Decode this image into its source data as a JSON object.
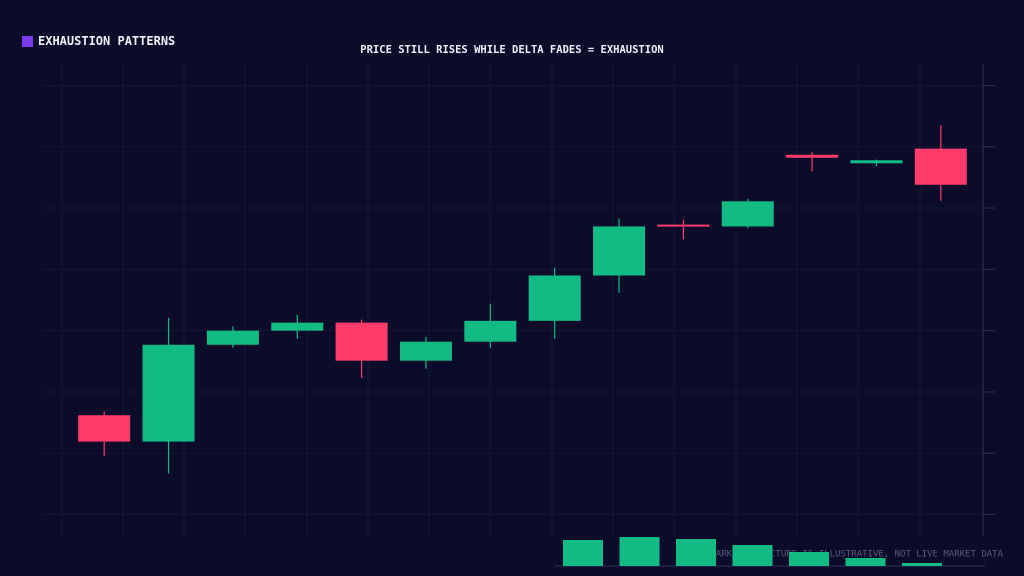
{
  "header": {
    "title": "EXHAUSTION PATTERNS"
  },
  "footer": {
    "note": "MARKET STRUCTURE IS ILLUSTRATIVE, NOT LIVE MARKET DATA"
  },
  "chart_data": [
    {
      "type": "candlestick",
      "title": "PRICE STILL RISES WHILE DELTA FADES = EXHAUSTION",
      "up_color": "#12bb83",
      "down_color": "#ff3b6b",
      "open": [
        1.62,
        1.19,
        2.77,
        3.0,
        3.13,
        2.51,
        2.82,
        3.16,
        3.9,
        4.73,
        4.7,
        5.87,
        5.73,
        5.97
      ],
      "high": [
        1.68,
        3.21,
        3.07,
        3.26,
        3.18,
        2.9,
        3.44,
        4.03,
        4.83,
        4.81,
        5.15,
        5.91,
        5.79,
        6.35
      ],
      "low": [
        0.95,
        0.67,
        2.72,
        2.87,
        2.23,
        2.38,
        2.72,
        2.87,
        3.62,
        4.49,
        4.67,
        5.6,
        5.68,
        5.12
      ],
      "close": [
        1.19,
        2.77,
        3.0,
        3.13,
        2.51,
        2.82,
        3.16,
        3.9,
        4.7,
        4.7,
        5.11,
        5.82,
        5.78,
        5.38
      ],
      "ylim": [
        -0.35,
        7.35
      ],
      "yticks": [
        0,
        1,
        2,
        3,
        4,
        5,
        6,
        7
      ],
      "grid": true
    },
    {
      "type": "bar",
      "color": "#12bb83",
      "categories": [
        null,
        null,
        null,
        null,
        null,
        null,
        null
      ],
      "values": [
        26,
        29,
        27,
        21,
        14,
        8,
        3
      ],
      "ylim": [
        0,
        30
      ]
    }
  ]
}
